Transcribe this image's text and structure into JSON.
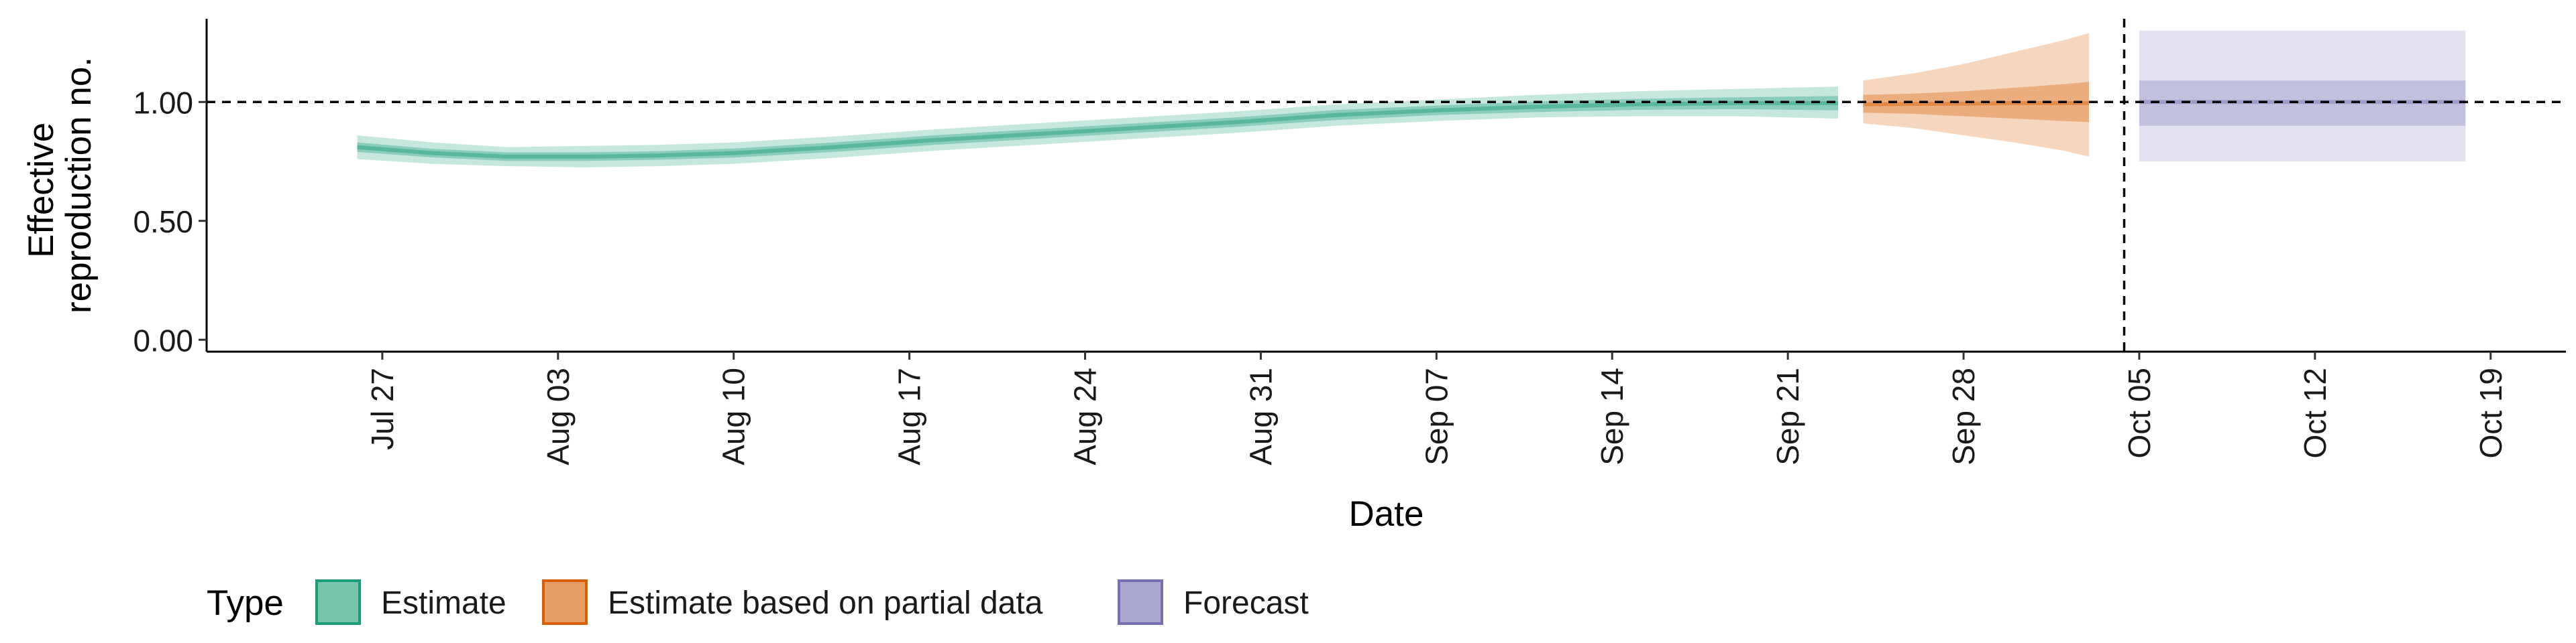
{
  "chart_data": {
    "type": "area",
    "xlabel": "Date",
    "ylabel_lines": [
      "Effective",
      "reproduction no."
    ],
    "ylim": [
      -0.05,
      1.35
    ],
    "yticks": [
      0.0,
      0.5,
      1.0
    ],
    "ytick_labels": [
      "0.00",
      "0.50",
      "1.00"
    ],
    "xlim": [
      "2021-07-20",
      "2021-10-22"
    ],
    "xticks": [
      "2021-07-27",
      "2021-08-03",
      "2021-08-10",
      "2021-08-17",
      "2021-08-24",
      "2021-08-31",
      "2021-09-07",
      "2021-09-14",
      "2021-09-21",
      "2021-09-28",
      "2021-10-05",
      "2021-10-12",
      "2021-10-19"
    ],
    "xtick_labels": [
      "Jul 27",
      "Aug 03",
      "Aug 10",
      "Aug 17",
      "Aug 24",
      "Aug 31",
      "Sep 07",
      "Sep 14",
      "Sep 21",
      "Sep 28",
      "Oct 05",
      "Oct 12",
      "Oct 19"
    ],
    "reference_line_y": 1.0,
    "reference_line_date": "2021-10-04",
    "grid": false,
    "legend_position": "bottom-left",
    "legend": {
      "title": "Type",
      "items": [
        {
          "label": "Estimate",
          "color": "#1b9e77"
        },
        {
          "label": "Estimate based on partial data",
          "color": "#d95f02"
        },
        {
          "label": "Forecast",
          "color": "#7570b3"
        }
      ]
    },
    "series": [
      {
        "name": "Estimate",
        "color": "#1b9e77",
        "x": [
          "2021-07-26",
          "2021-07-29",
          "2021-08-01",
          "2021-08-04",
          "2021-08-07",
          "2021-08-10",
          "2021-08-14",
          "2021-08-18",
          "2021-08-22",
          "2021-08-26",
          "2021-08-30",
          "2021-09-03",
          "2021-09-07",
          "2021-09-11",
          "2021-09-15",
          "2021-09-19",
          "2021-09-23"
        ],
        "median": [
          0.81,
          0.785,
          0.77,
          0.77,
          0.775,
          0.785,
          0.81,
          0.84,
          0.865,
          0.89,
          0.915,
          0.945,
          0.965,
          0.98,
          0.99,
          0.995,
          0.995
        ],
        "lower50": [
          0.79,
          0.767,
          0.752,
          0.752,
          0.757,
          0.766,
          0.79,
          0.82,
          0.845,
          0.87,
          0.895,
          0.924,
          0.945,
          0.958,
          0.967,
          0.97,
          0.965
        ],
        "upper50": [
          0.83,
          0.803,
          0.788,
          0.788,
          0.793,
          0.804,
          0.83,
          0.86,
          0.885,
          0.91,
          0.935,
          0.966,
          0.985,
          1.002,
          1.013,
          1.02,
          1.025
        ],
        "lower90": [
          0.76,
          0.74,
          0.73,
          0.725,
          0.73,
          0.74,
          0.765,
          0.795,
          0.82,
          0.845,
          0.87,
          0.9,
          0.92,
          0.935,
          0.94,
          0.94,
          0.93
        ],
        "upper90": [
          0.86,
          0.83,
          0.81,
          0.815,
          0.82,
          0.83,
          0.855,
          0.885,
          0.91,
          0.935,
          0.96,
          0.99,
          1.01,
          1.03,
          1.045,
          1.055,
          1.065
        ]
      },
      {
        "name": "Estimate based on partial data",
        "color": "#d95f02",
        "x": [
          "2021-09-24",
          "2021-09-26",
          "2021-09-28",
          "2021-09-30",
          "2021-10-02",
          "2021-10-03"
        ],
        "median": [
          0.99,
          0.992,
          0.993,
          0.995,
          0.995,
          0.995
        ],
        "lower50": [
          0.955,
          0.95,
          0.94,
          0.93,
          0.92,
          0.915
        ],
        "upper50": [
          1.03,
          1.035,
          1.045,
          1.06,
          1.075,
          1.085
        ],
        "lower90": [
          0.91,
          0.89,
          0.86,
          0.83,
          0.795,
          0.77
        ],
        "upper90": [
          1.09,
          1.12,
          1.16,
          1.21,
          1.26,
          1.29
        ]
      },
      {
        "name": "Forecast",
        "color": "#7570b3",
        "x": [
          "2021-10-05",
          "2021-10-18"
        ],
        "median": [
          1.0,
          1.0
        ],
        "lower50": [
          0.9,
          0.9
        ],
        "upper50": [
          1.09,
          1.09
        ],
        "lower90": [
          0.75,
          0.75
        ],
        "upper90": [
          1.3,
          1.3
        ]
      }
    ]
  }
}
